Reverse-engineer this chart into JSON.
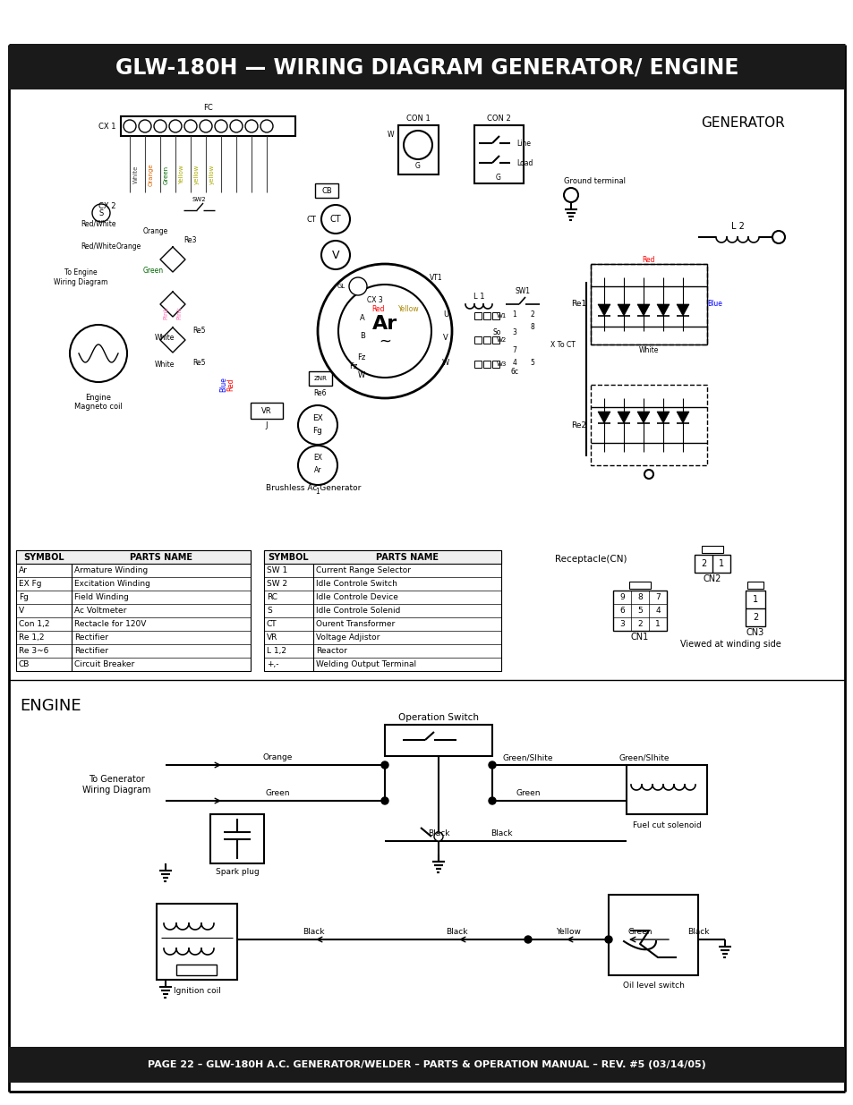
{
  "title": "GLW-180H — WIRING DIAGRAM GENERATOR/ ENGINE",
  "title_bg": "#1a1a1a",
  "title_fg": "#ffffff",
  "footer": "PAGE 22 – GLW-180H A.C. GENERATOR/WELDER – PARTS & OPERATION MANUAL – REV. #5 (03/14/05)",
  "footer_bg": "#1a1a1a",
  "footer_fg": "#ffffff",
  "bg_color": "#ffffff",
  "generator_label": "GENERATOR",
  "engine_label": "ENGINE",
  "symbol_header": "SYMBOL",
  "parts_header": "PARTS NAME",
  "table1": [
    [
      "Ar",
      "Armature Winding"
    ],
    [
      "EX Fg",
      "Excitation Winding"
    ],
    [
      "Fg",
      "Field Winding"
    ],
    [
      "V",
      "Ac Voltmeter"
    ],
    [
      "Con 1,2",
      "Rectacle for 120V"
    ],
    [
      "Re 1,2",
      "Rectifier"
    ],
    [
      "Re 3~6",
      "Rectifier"
    ],
    [
      "CB",
      "Circuit Breaker"
    ]
  ],
  "table2": [
    [
      "SW 1",
      "Current Range Selector"
    ],
    [
      "SW 2",
      "Idle Controle Switch"
    ],
    [
      "RC",
      "Idle Controle Device"
    ],
    [
      "S",
      "Idle Controle Solenid"
    ],
    [
      "CT",
      "Ourent Transformer"
    ],
    [
      "VR",
      "Voltage Adjistor"
    ],
    [
      "L 1,2",
      "Reactor"
    ],
    [
      "+,-",
      "Welding Output Terminal"
    ]
  ],
  "receptacle_label": "Receptacle(CN)",
  "cn1_label": "CN1",
  "cn2_label": "CN2",
  "cn3_label": "CN3",
  "viewed_label": "Viewed at winding side",
  "brushless_label": "Brushless Ac Generator",
  "operation_switch_label": "Operation Switch",
  "to_generator_label": "To Generator\nWiring Diagram",
  "spark_plug_label": "Spark plug",
  "ignition_coil_label": "Ignition coil",
  "fuel_cut_label": "Fuel cut solenoid",
  "oil_level_label": "Oil level switch"
}
